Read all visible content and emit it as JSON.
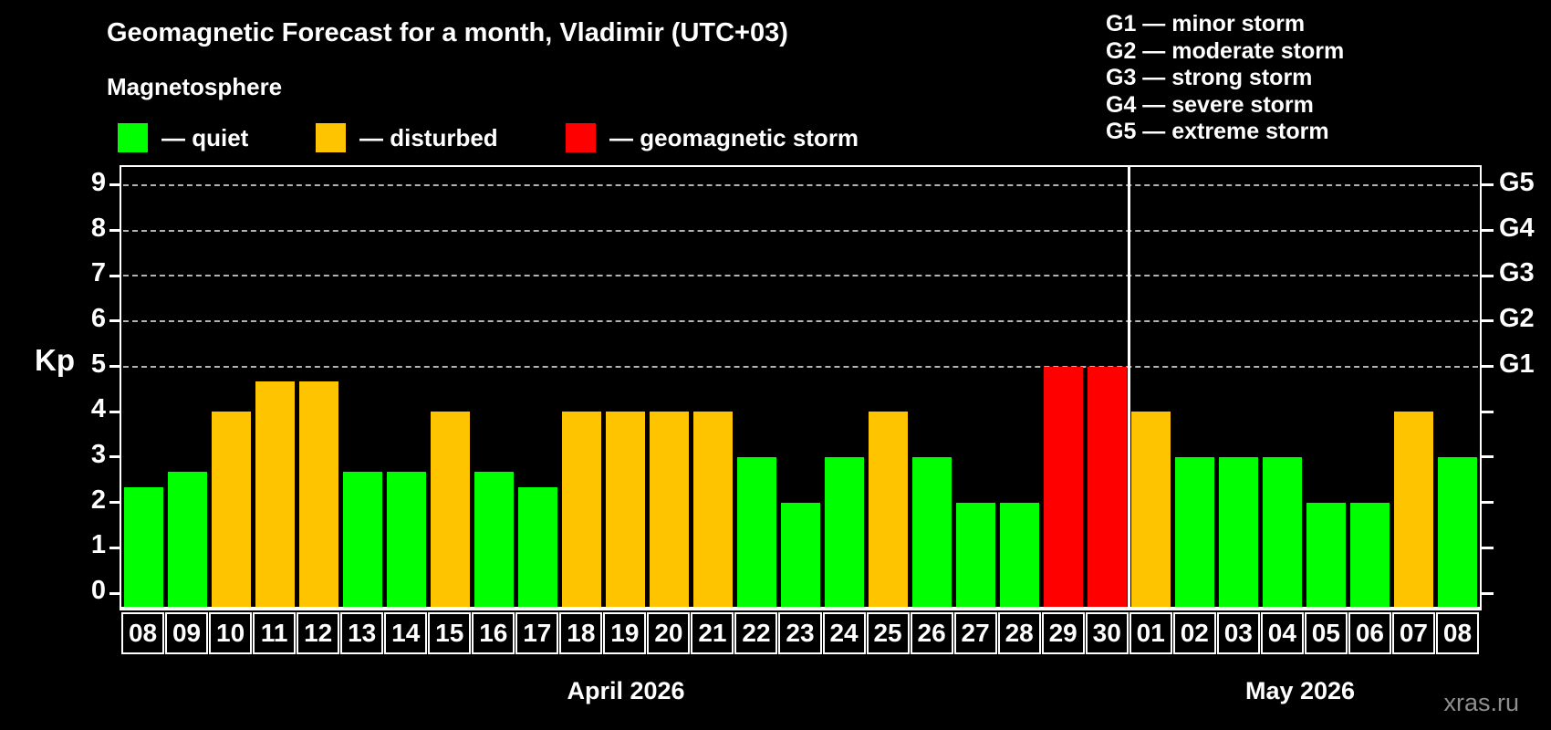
{
  "header": {
    "title": "Geomagnetic Forecast for a month, Vladimir (UTC+03)",
    "subtitle": "Magnetosphere",
    "legend": [
      {
        "label": "— quiet",
        "status": "quiet",
        "color": "#00ff00"
      },
      {
        "label": "— disturbed",
        "status": "disturbed",
        "color": "#ffc400"
      },
      {
        "label": "— geomagnetic storm",
        "status": "storm",
        "color": "#ff0000"
      }
    ],
    "g_scale_legend": [
      "G1 — minor storm",
      "G2 — moderate storm",
      "G3 — strong storm",
      "G4 — severe storm",
      "G5 — extreme storm"
    ]
  },
  "chart_data": {
    "type": "bar",
    "title": "Geomagnetic Forecast for a month, Vladimir (UTC+03)",
    "ylabel": "Kp",
    "xlabel": "",
    "ylim": [
      -0.35,
      9.42
    ],
    "y_ticks": [
      0,
      1,
      2,
      3,
      4,
      5,
      6,
      7,
      8,
      9
    ],
    "gridline_values": [
      5,
      6,
      7,
      8,
      9
    ],
    "grid": "horizontal dashed at Kp 5 to 9",
    "legend_position": "top-left",
    "right_axis": [
      {
        "value": 5,
        "label": "G1"
      },
      {
        "value": 6,
        "label": "G2"
      },
      {
        "value": 7,
        "label": "G3"
      },
      {
        "value": 8,
        "label": "G4"
      },
      {
        "value": 9,
        "label": "G5"
      }
    ],
    "months": [
      {
        "label": "April 2026",
        "days": 23
      },
      {
        "label": "May 2026",
        "days": 8
      }
    ],
    "status_colors": {
      "quiet": "#00ff00",
      "disturbed": "#ffc400",
      "storm": "#ff0000"
    },
    "series": [
      {
        "day": "08",
        "month": "April",
        "value": 2.33,
        "status": "quiet"
      },
      {
        "day": "09",
        "month": "April",
        "value": 2.67,
        "status": "quiet"
      },
      {
        "day": "10",
        "month": "April",
        "value": 4,
        "status": "disturbed"
      },
      {
        "day": "11",
        "month": "April",
        "value": 4.67,
        "status": "disturbed"
      },
      {
        "day": "12",
        "month": "April",
        "value": 4.67,
        "status": "disturbed"
      },
      {
        "day": "13",
        "month": "April",
        "value": 2.67,
        "status": "quiet"
      },
      {
        "day": "14",
        "month": "April",
        "value": 2.67,
        "status": "quiet"
      },
      {
        "day": "15",
        "month": "April",
        "value": 4,
        "status": "disturbed"
      },
      {
        "day": "16",
        "month": "April",
        "value": 2.67,
        "status": "quiet"
      },
      {
        "day": "17",
        "month": "April",
        "value": 2.33,
        "status": "quiet"
      },
      {
        "day": "18",
        "month": "April",
        "value": 4,
        "status": "disturbed"
      },
      {
        "day": "19",
        "month": "April",
        "value": 4,
        "status": "disturbed"
      },
      {
        "day": "20",
        "month": "April",
        "value": 4,
        "status": "disturbed"
      },
      {
        "day": "21",
        "month": "April",
        "value": 4,
        "status": "disturbed"
      },
      {
        "day": "22",
        "month": "April",
        "value": 3,
        "status": "quiet"
      },
      {
        "day": "23",
        "month": "April",
        "value": 2,
        "status": "quiet"
      },
      {
        "day": "24",
        "month": "April",
        "value": 3,
        "status": "quiet"
      },
      {
        "day": "25",
        "month": "April",
        "value": 4,
        "status": "disturbed"
      },
      {
        "day": "26",
        "month": "April",
        "value": 3,
        "status": "quiet"
      },
      {
        "day": "27",
        "month": "April",
        "value": 2,
        "status": "quiet"
      },
      {
        "day": "28",
        "month": "April",
        "value": 2,
        "status": "quiet"
      },
      {
        "day": "29",
        "month": "April",
        "value": 5,
        "status": "storm"
      },
      {
        "day": "30",
        "month": "April",
        "value": 5,
        "status": "storm"
      },
      {
        "day": "01",
        "month": "May",
        "value": 4,
        "status": "disturbed"
      },
      {
        "day": "02",
        "month": "May",
        "value": 3,
        "status": "quiet"
      },
      {
        "day": "03",
        "month": "May",
        "value": 3,
        "status": "quiet"
      },
      {
        "day": "04",
        "month": "May",
        "value": 3,
        "status": "quiet"
      },
      {
        "day": "05",
        "month": "May",
        "value": 2,
        "status": "quiet"
      },
      {
        "day": "06",
        "month": "May",
        "value": 2,
        "status": "quiet"
      },
      {
        "day": "07",
        "month": "May",
        "value": 4,
        "status": "disturbed"
      },
      {
        "day": "08",
        "month": "May",
        "value": 3,
        "status": "quiet"
      }
    ]
  },
  "watermark": "xras.ru"
}
